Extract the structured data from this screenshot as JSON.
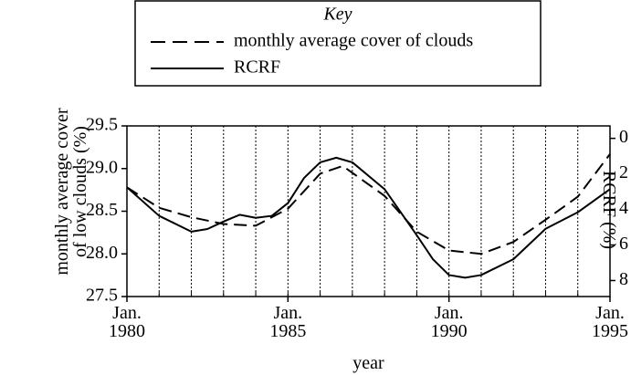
{
  "chart_data": {
    "type": "line",
    "legend_title": "Key",
    "xlabel": "year",
    "ylabel": "monthly average cover of low clouds (%)",
    "y2label": "RCRF (%)",
    "xlim": [
      1980,
      1995
    ],
    "xticks": [
      {
        "value": 1980,
        "label": "Jan. 1980"
      },
      {
        "value": 1985,
        "label": "Jan. 1985"
      },
      {
        "value": 1990,
        "label": "Jan. 1990"
      },
      {
        "value": 1995,
        "label": "Jan. 1995"
      }
    ],
    "minor_xticks": [
      1981,
      1982,
      1983,
      1984,
      1985,
      1986,
      1987,
      1988,
      1989,
      1990,
      1991,
      1992,
      1993,
      1994
    ],
    "ylim": [
      27.5,
      29.5
    ],
    "yticks": [
      27.5,
      {
        "value": 28,
        "label": "28.0"
      },
      28.5,
      {
        "value": 29,
        "label": "29.0"
      },
      29.5
    ],
    "y2lim": [
      8.9,
      -0.7
    ],
    "y2ticks": [
      0,
      2,
      4,
      6,
      8
    ],
    "grid": true,
    "series": [
      {
        "name": "monthly average cover of clouds",
        "color": "#000000",
        "dash": "dashed",
        "x": [
          1980,
          1981,
          1982,
          1983,
          1984,
          1985,
          1986,
          1986.7,
          1987,
          1988,
          1989,
          1990,
          1991,
          1992,
          1993,
          1994,
          1995
        ],
        "values": [
          28.78,
          28.54,
          28.43,
          28.35,
          28.33,
          28.53,
          28.94,
          29.03,
          28.95,
          28.68,
          28.26,
          28.04,
          28.0,
          28.14,
          28.4,
          28.67,
          29.17
        ]
      },
      {
        "name": "RCRF",
        "color": "#000000",
        "dash": "solid",
        "axis": "y2",
        "x": [
          1980,
          1981,
          1982,
          1982.5,
          1983,
          1983.5,
          1984,
          1984.5,
          1985,
          1985.5,
          1986,
          1986.5,
          1987,
          1988,
          1989,
          1989.5,
          1990,
          1990.5,
          1991,
          1992,
          1993,
          1994,
          1995
        ],
        "values": [
          2.75,
          4.36,
          5.25,
          5.1,
          4.68,
          4.3,
          4.47,
          4.36,
          3.64,
          2.23,
          1.35,
          1.09,
          1.35,
          2.86,
          5.45,
          6.8,
          7.69,
          7.84,
          7.69,
          6.8,
          5.09,
          4.16,
          2.86
        ]
      }
    ]
  }
}
